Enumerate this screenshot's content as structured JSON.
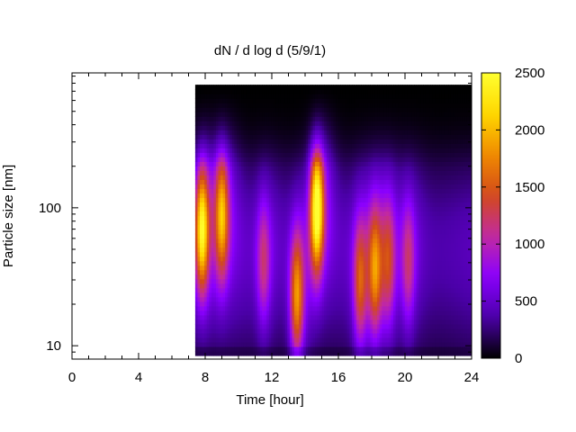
{
  "chart_data": {
    "type": "heatmap",
    "title": "dN / d log d (5/9/1)",
    "xlabel": "Time [hour]",
    "ylabel": "Particle size [nm]",
    "xlim": [
      0,
      24
    ],
    "ylim": [
      8,
      950
    ],
    "y_scale": "log",
    "x_ticks": [
      0,
      4,
      8,
      12,
      16,
      20,
      24
    ],
    "x_tick_labels": [
      "0",
      "4",
      "8",
      "12",
      "16",
      "20",
      "24"
    ],
    "y_ticks": [
      10,
      100
    ],
    "y_tick_labels": [
      "10",
      "100"
    ],
    "colorbar": {
      "range": [
        0,
        2500
      ],
      "ticks": [
        0,
        500,
        1000,
        1500,
        2000,
        2500
      ],
      "tick_labels": [
        "0",
        "500",
        "1000",
        "1500",
        "2000",
        "2500"
      ],
      "colormap": "gnuplot-pm3d-fire",
      "colors": [
        "#000000",
        "#4b00a8",
        "#8a00ff",
        "#c22aa0",
        "#d24a1a",
        "#f08a00",
        "#ffd800",
        "#ffff30"
      ]
    },
    "data_time_range": [
      7.4,
      24
    ],
    "size_range_nm": [
      8.5,
      780
    ],
    "color_at_value_0": "#000000",
    "nucleation_events": [
      {
        "time": 7.8,
        "peak_size_nm": 70,
        "value": 2100
      },
      {
        "time": 9.0,
        "peak_size_nm": 90,
        "value": 1700
      },
      {
        "time": 11.5,
        "peak_size_nm": 40,
        "value": 1000
      },
      {
        "time": 13.5,
        "peak_size_nm": 22,
        "value": 1650
      },
      {
        "time": 14.7,
        "peak_size_nm": 100,
        "value": 2350
      },
      {
        "time": 17.3,
        "peak_size_nm": 28,
        "value": 1300
      },
      {
        "time": 18.2,
        "peak_size_nm": 35,
        "value": 1450
      },
      {
        "time": 19.0,
        "peak_size_nm": 40,
        "value": 1050
      },
      {
        "time": 20.2,
        "peak_size_nm": 40,
        "value": 1000
      }
    ],
    "grid": false
  }
}
